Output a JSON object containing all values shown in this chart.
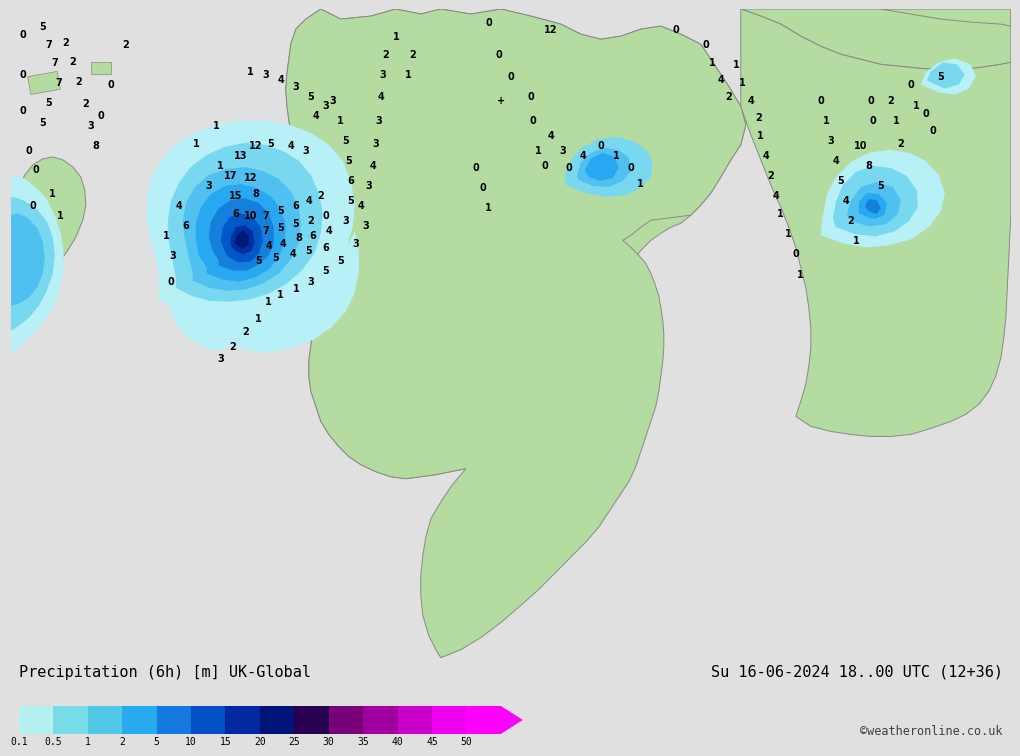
{
  "title_left": "Precipitation (6h) [m] UK-Global",
  "title_right": "Su 16-06-2024 18..00 UTC (12+36)",
  "credit": "©weatheronline.co.uk",
  "colorbar_labels": [
    "0.1",
    "0.5",
    "1",
    "2",
    "5",
    "10",
    "15",
    "20",
    "25",
    "30",
    "35",
    "40",
    "45",
    "50"
  ],
  "colorbar_colors": [
    "#b4f0f0",
    "#78dce6",
    "#50c8e6",
    "#28aaf0",
    "#1478dc",
    "#0050c8",
    "#0028a0",
    "#001478",
    "#280050",
    "#780078",
    "#a000a0",
    "#c800c8",
    "#f000f0",
    "#ff00ff"
  ],
  "bg_color": "#e0e0e0",
  "land_color": "#b4dca0",
  "sea_color": "#d8d8d8",
  "figwidth": 10.0,
  "figheight": 7.33
}
